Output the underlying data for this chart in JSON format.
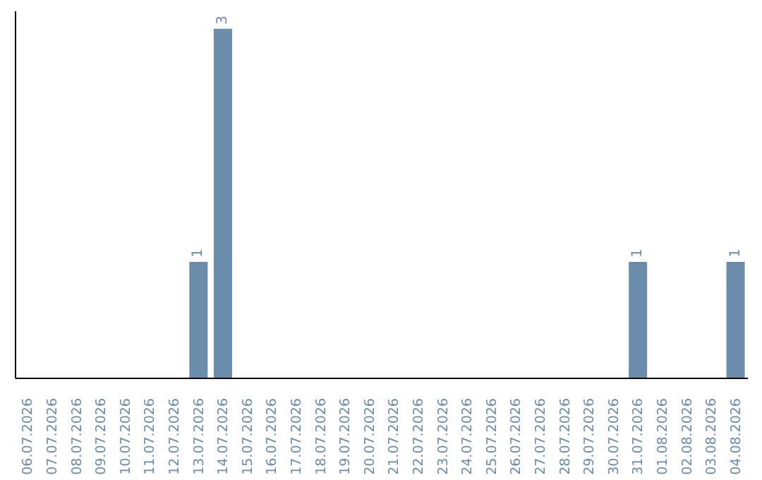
{
  "chart_data": {
    "type": "bar",
    "categories": [
      "06.07.2026",
      "07.07.2026",
      "08.07.2026",
      "09.07.2026",
      "10.07.2026",
      "11.07.2026",
      "12.07.2026",
      "13.07.2026",
      "14.07.2026",
      "15.07.2026",
      "16.07.2026",
      "17.07.2026",
      "18.07.2026",
      "19.07.2026",
      "20.07.2026",
      "21.07.2026",
      "22.07.2026",
      "23.07.2026",
      "24.07.2026",
      "25.07.2026",
      "26.07.2026",
      "27.07.2026",
      "28.07.2026",
      "29.07.2026",
      "30.07.2026",
      "31.07.2026",
      "01.08.2026",
      "02.08.2026",
      "03.08.2026",
      "04.08.2026"
    ],
    "values": [
      0,
      0,
      0,
      0,
      0,
      0,
      0,
      1,
      3,
      0,
      0,
      0,
      0,
      0,
      0,
      0,
      0,
      0,
      0,
      0,
      0,
      0,
      0,
      0,
      0,
      1,
      0,
      0,
      0,
      1
    ],
    "value_labels": [
      null,
      null,
      null,
      null,
      null,
      null,
      null,
      "1",
      "3",
      null,
      null,
      null,
      null,
      null,
      null,
      null,
      null,
      null,
      null,
      null,
      null,
      null,
      null,
      null,
      null,
      "1",
      null,
      null,
      null,
      "1"
    ],
    "color": "#6b8cab"
  }
}
